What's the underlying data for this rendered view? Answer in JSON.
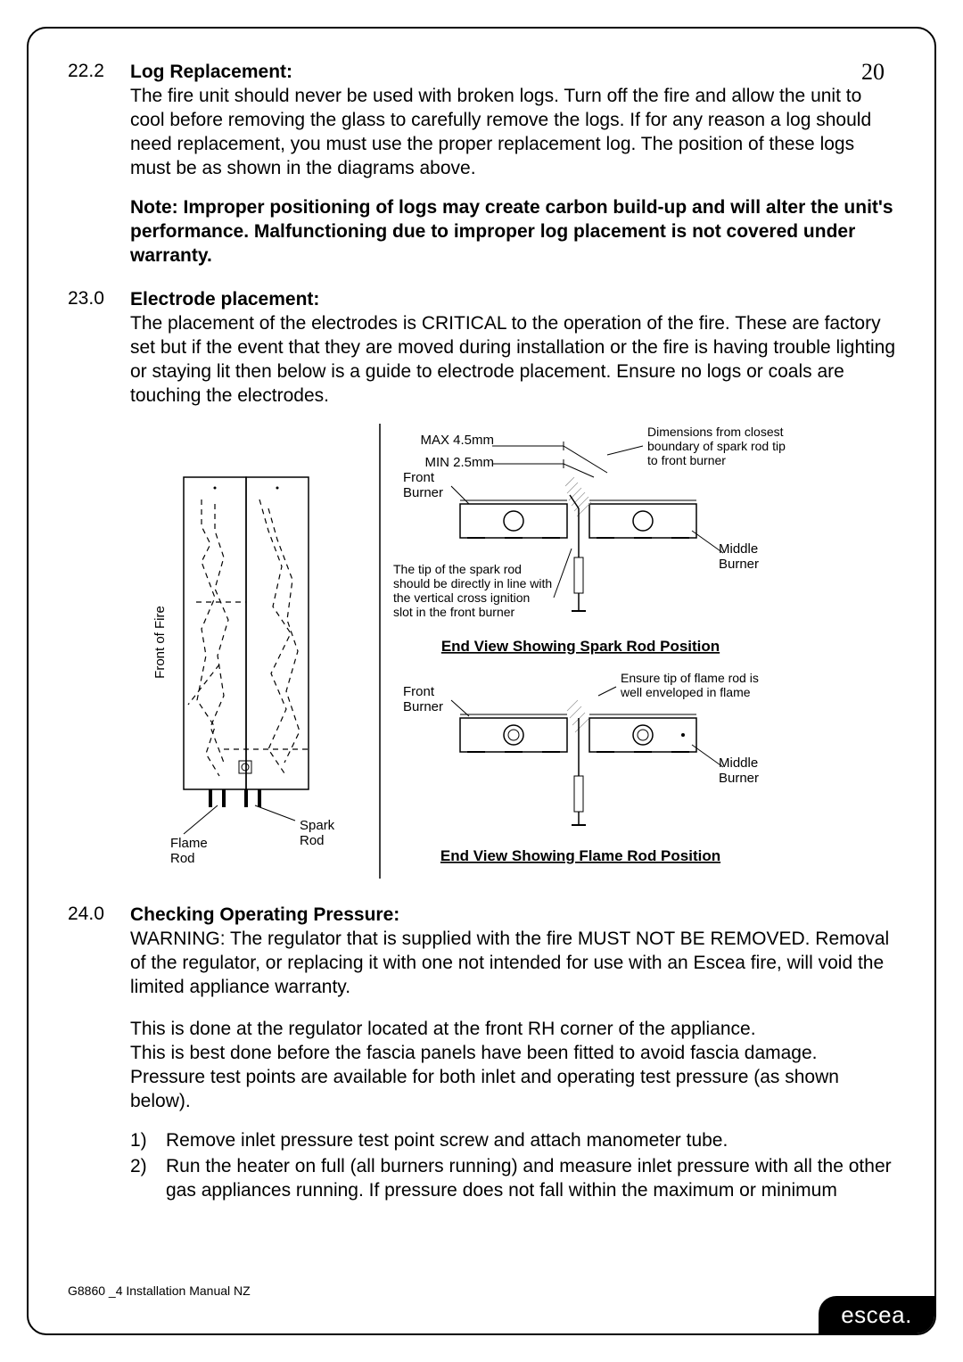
{
  "pageNumber": "20",
  "sections": {
    "s222": {
      "num": "22.2",
      "title": "Log Replacement:",
      "body": "The fire unit should never be used with broken logs. Turn off the fire and allow the unit to cool before removing the glass to carefully remove the logs. If for any reason a log should need replacement, you must use the proper replacement log. The position of these logs must be as shown in the diagrams above."
    },
    "note": "Note: Improper positioning of logs may create carbon build-up and will alter the unit's performance. Malfunctioning due to improper log placement is not covered under warranty.",
    "s230": {
      "num": "23.0",
      "title": "Electrode placement:",
      "body": "The placement of the electrodes is CRITICAL to the operation of the fire. These are factory set but if the event that they are moved during installation or the fire is having trouble lighting or staying lit then below is a guide to electrode placement. Ensure no logs or coals are touching the electrodes."
    },
    "s240": {
      "num": "24.0",
      "title": "Checking Operating Pressure:",
      "body1": "WARNING: The regulator that is supplied with the fire MUST NOT BE REMOVED. Removal of the regulator, or replacing it with one not intended for use with an Escea fire, will void the limited appliance warranty.",
      "body2": "This is done at the regulator located at the front RH corner of the appliance.\nThis is best done before the fascia panels have been fitted to avoid fascia damage.\nPressure test points are available for both inlet and operating test pressure (as shown below).",
      "list": [
        {
          "n": "1)",
          "t": "Remove inlet pressure test point screw and attach manometer tube."
        },
        {
          "n": "2)",
          "t": "Run the heater on full (all burners running) and measure inlet pressure with all the other gas appliances running. If pressure does not fall within the maximum or minimum"
        }
      ]
    }
  },
  "diagram": {
    "leftLabels": {
      "frontOfFire": "Front of Fire",
      "flameRod": "Flame Rod",
      "sparkRod": "Spark Rod"
    },
    "topDiagram": {
      "max": "MAX 4.5mm",
      "min": "MIN 2.5mm",
      "frontBurner": "Front Burner",
      "middleBurner": "Middle Burner",
      "dimNote": "Dimensions from closest boundary of spark rod tip to front burner",
      "tipNote": "The tip of the spark rod should be directly in line with the vertical cross ignition slot in the front burner",
      "caption": "End View Showing Spark Rod Position"
    },
    "bottomDiagram": {
      "frontBurner": "Front Burner",
      "middleBurner": "Middle Burner",
      "flameNote": "Ensure tip of flame rod is well enveloped in flame",
      "caption": "End View Showing Flame Rod Position"
    },
    "colors": {
      "stroke": "#000000",
      "hatch": "#999999"
    }
  },
  "footer": "G8860 _4 Installation Manual NZ",
  "logo": "escea."
}
